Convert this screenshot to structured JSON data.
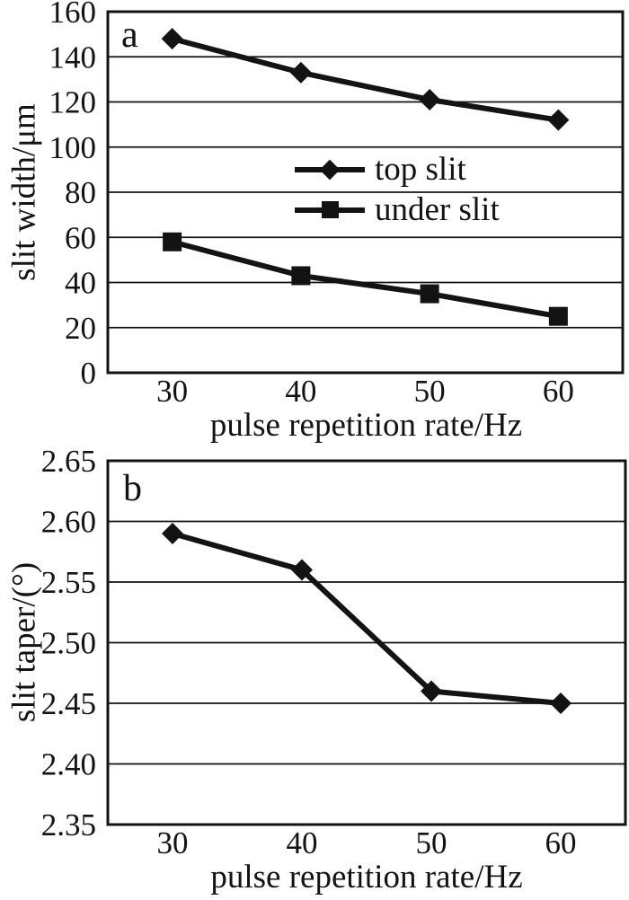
{
  "figure": {
    "background": "#ffffff",
    "ink": "#131313"
  },
  "chart_data": [
    {
      "id": "a",
      "type": "line",
      "panel_label": "a",
      "title": "",
      "xlabel": "pulse repetition rate/Hz",
      "ylabel": "slit width/μm",
      "x": [
        30,
        40,
        50,
        60
      ],
      "x_tick_labels": [
        "30",
        "40",
        "50",
        "60"
      ],
      "ylim": [
        0,
        160
      ],
      "ytick_labels": [
        "0",
        "20",
        "40",
        "60",
        "80",
        "100",
        "120",
        "140",
        "160"
      ],
      "grid": true,
      "legend": {
        "position": "inside-center",
        "entries": [
          {
            "label": "top slit",
            "marker": "diamond"
          },
          {
            "label": "under slit",
            "marker": "square"
          }
        ]
      },
      "series": [
        {
          "name": "top slit",
          "marker": "diamond",
          "values": [
            148,
            133,
            121,
            112
          ]
        },
        {
          "name": "under slit",
          "marker": "square",
          "values": [
            58,
            43,
            35,
            25
          ]
        }
      ]
    },
    {
      "id": "b",
      "type": "line",
      "panel_label": "b",
      "title": "",
      "xlabel": "pulse repetition rate/Hz",
      "ylabel": "slit taper/(°)",
      "x": [
        30,
        40,
        50,
        60
      ],
      "x_tick_labels": [
        "30",
        "40",
        "50",
        "60"
      ],
      "ylim": [
        2.35,
        2.65
      ],
      "ytick_labels": [
        "2.35",
        "2.40",
        "2.45",
        "2.50",
        "2.55",
        "2.60",
        "2.65"
      ],
      "grid": true,
      "series": [
        {
          "name": "slit taper",
          "marker": "diamond",
          "values": [
            2.59,
            2.56,
            2.46,
            2.45
          ]
        }
      ]
    }
  ]
}
